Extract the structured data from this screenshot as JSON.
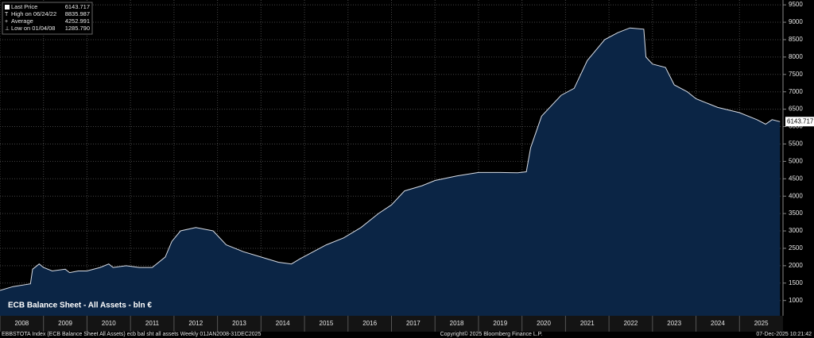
{
  "chart_data": {
    "type": "area",
    "title": "ECB Balance Sheet - All Assets - bln €",
    "color": "#0b2545",
    "line_color": "#d8dde6",
    "grid": true,
    "x": [
      2008.0,
      2008.3,
      2008.7,
      2008.75,
      2008.9,
      2009.0,
      2009.2,
      2009.5,
      2009.6,
      2009.8,
      2010.0,
      2010.3,
      2010.5,
      2010.6,
      2010.9,
      2011.2,
      2011.5,
      2011.8,
      2011.95,
      2012.15,
      2012.5,
      2012.9,
      2013.2,
      2013.6,
      2014.0,
      2014.4,
      2014.7,
      2014.9,
      2015.2,
      2015.5,
      2015.9,
      2016.3,
      2016.7,
      2017.0,
      2017.3,
      2017.7,
      2018.0,
      2018.5,
      2019.0,
      2019.5,
      2019.9,
      2020.1,
      2020.2,
      2020.45,
      2020.9,
      2021.2,
      2021.5,
      2021.9,
      2022.2,
      2022.48,
      2022.8,
      2022.85,
      2023.0,
      2023.3,
      2023.5,
      2023.8,
      2024.0,
      2024.5,
      2025.0,
      2025.4,
      2025.6,
      2025.75,
      2025.93
    ],
    "values": [
      1290,
      1400,
      1480,
      1900,
      2050,
      1950,
      1850,
      1900,
      1800,
      1850,
      1850,
      1950,
      2050,
      1950,
      2000,
      1950,
      1950,
      2250,
      2700,
      3000,
      3100,
      3000,
      2600,
      2400,
      2250,
      2100,
      2050,
      2200,
      2400,
      2600,
      2800,
      3100,
      3500,
      3750,
      4150,
      4300,
      4450,
      4580,
      4680,
      4680,
      4670,
      4700,
      5400,
      6300,
      6900,
      7100,
      7900,
      8500,
      8700,
      8836,
      8800,
      8000,
      7800,
      7700,
      7200,
      7000,
      6800,
      6550,
      6400,
      6200,
      6070,
      6200,
      6143.717
    ],
    "xlim": [
      2008,
      2026
    ],
    "xticks": [
      2008,
      2009,
      2010,
      2011,
      2012,
      2013,
      2014,
      2015,
      2016,
      2017,
      2018,
      2019,
      2020,
      2021,
      2022,
      2023,
      2024,
      2025
    ],
    "ylim": [
      560,
      9640
    ],
    "yticks": [
      1000,
      1500,
      2000,
      2500,
      3000,
      3500,
      4000,
      4500,
      5000,
      5500,
      6000,
      6500,
      7000,
      7500,
      8000,
      8500,
      9000,
      9500
    ],
    "stats": [
      {
        "label": "Last Price",
        "value": "6143.717"
      },
      {
        "label": "High on 06/24/22",
        "value": "8835.987"
      },
      {
        "label": "Average",
        "value": "4252.991"
      },
      {
        "label": "Low on 01/04/08",
        "value": "1285.790"
      }
    ],
    "footer": {
      "source": "EBBSTOTA Index (ECB Balance Sheet All Assets) ecb bal sht all assets Weekly 01JAN2008-31DEC2025",
      "copyright": "Copyright© 2025 Bloomberg Finance L.P.",
      "timestamp": "07-Dec-2025 10:21:42"
    }
  }
}
